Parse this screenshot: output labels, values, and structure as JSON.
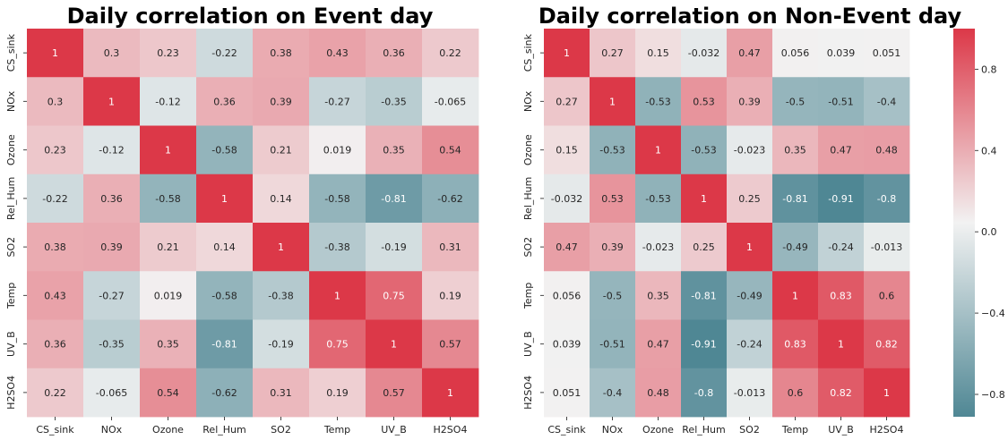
{
  "chart_data": [
    {
      "type": "heatmap",
      "title": "Daily correlation on Event day",
      "xlabel": "",
      "ylabel": "",
      "x_categories": [
        "CS_sink",
        "NOx",
        "Ozone",
        "Rel_Hum",
        "SO2",
        "Temp",
        "UV_B",
        "H2SO4"
      ],
      "y_categories": [
        "CS_sink",
        "NOx",
        "Ozone",
        "Rel_Hum",
        "SO2",
        "Temp",
        "UV_B",
        "H2SO4"
      ],
      "values": [
        [
          1,
          0.3,
          0.23,
          -0.22,
          0.38,
          0.43,
          0.36,
          0.22
        ],
        [
          0.3,
          1,
          -0.12,
          0.36,
          0.39,
          -0.27,
          -0.35,
          -0.065
        ],
        [
          0.23,
          -0.12,
          1,
          -0.58,
          0.21,
          0.019,
          0.35,
          0.54
        ],
        [
          -0.22,
          0.36,
          -0.58,
          1,
          0.14,
          -0.58,
          -0.81,
          -0.62
        ],
        [
          0.38,
          0.39,
          0.21,
          0.14,
          1,
          -0.38,
          -0.19,
          0.31
        ],
        [
          0.43,
          -0.27,
          0.019,
          -0.58,
          -0.38,
          1,
          0.75,
          0.19
        ],
        [
          0.36,
          -0.35,
          0.35,
          -0.81,
          -0.19,
          0.75,
          1,
          0.57
        ],
        [
          0.22,
          -0.065,
          0.54,
          -0.62,
          0.31,
          0.19,
          0.57,
          1
        ]
      ],
      "color_range": [
        -1,
        1
      ],
      "annotated": true,
      "colorbar": false
    },
    {
      "type": "heatmap",
      "title": "Daily correlation on Non-Event day",
      "xlabel": "",
      "ylabel": "",
      "x_categories": [
        "CS_sink",
        "NOx",
        "Ozone",
        "Rel_Hum",
        "SO2",
        "Temp",
        "UV_B",
        "H2SO4"
      ],
      "y_categories": [
        "CS_sink",
        "NOx",
        "Ozone",
        "Rel_Hum",
        "SO2",
        "Temp",
        "UV_B",
        "H2SO4"
      ],
      "values": [
        [
          1,
          0.27,
          0.15,
          -0.032,
          0.47,
          0.056,
          0.039,
          0.051
        ],
        [
          0.27,
          1,
          -0.53,
          0.53,
          0.39,
          -0.5,
          -0.51,
          -0.4
        ],
        [
          0.15,
          -0.53,
          1,
          -0.53,
          -0.023,
          0.35,
          0.47,
          0.48
        ],
        [
          -0.032,
          0.53,
          -0.53,
          1,
          0.25,
          -0.81,
          -0.91,
          -0.8
        ],
        [
          0.47,
          0.39,
          -0.023,
          0.25,
          1,
          -0.49,
          -0.24,
          -0.013
        ],
        [
          0.056,
          -0.5,
          0.35,
          -0.81,
          -0.49,
          1,
          0.83,
          0.6
        ],
        [
          0.039,
          -0.51,
          0.47,
          -0.91,
          -0.24,
          0.83,
          1,
          0.82
        ],
        [
          0.051,
          -0.4,
          0.48,
          -0.8,
          -0.013,
          0.6,
          0.82,
          1
        ]
      ],
      "color_range": [
        -0.91,
        1
      ],
      "annotated": true,
      "colorbar": true,
      "colorbar_ticks": [
        "0.8",
        "0.4",
        "0.0",
        "−0.4",
        "−0.8"
      ]
    }
  ],
  "colors": {
    "negative": "#4f8794",
    "neutral": "#f2f2f2",
    "positive": "#dc3848"
  }
}
